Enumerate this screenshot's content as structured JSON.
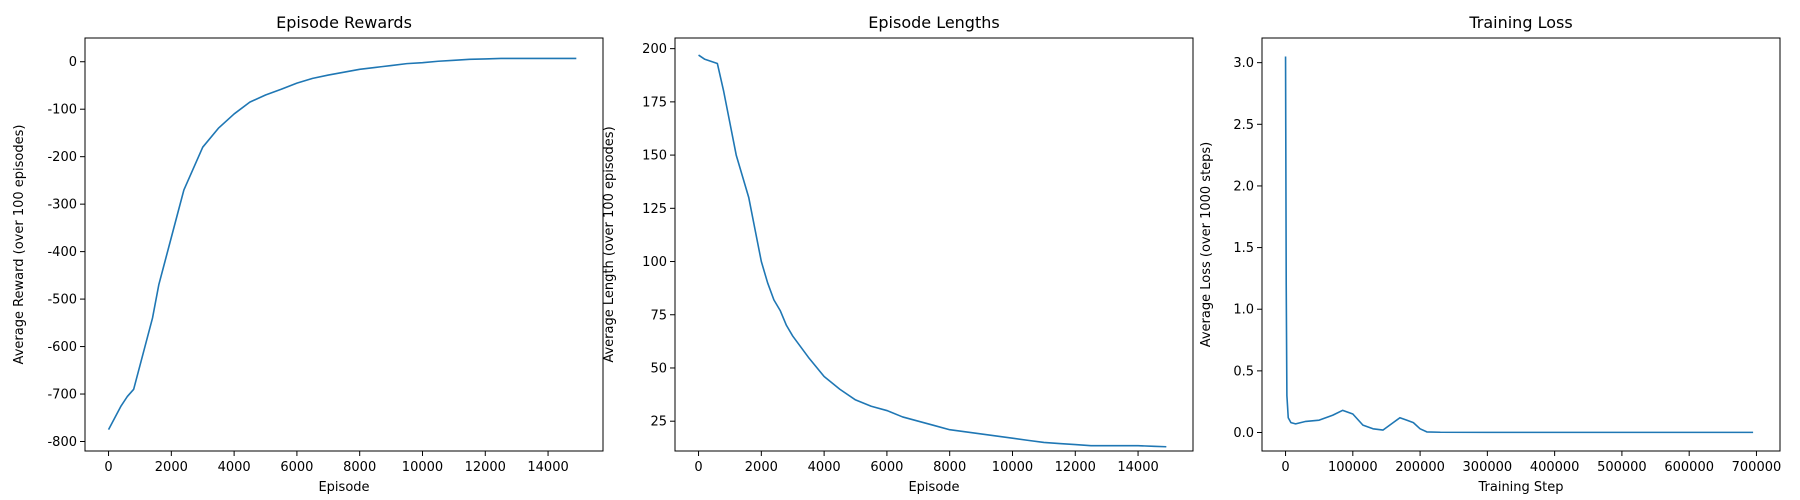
{
  "chart_data": [
    {
      "type": "line",
      "title": "Episode Rewards",
      "xlabel": "Episode",
      "ylabel": "Average Reward (over 100 episodes)",
      "xlim": [
        -750,
        15750
      ],
      "ylim": [
        -820,
        50
      ],
      "xticks": [
        0,
        2000,
        4000,
        6000,
        8000,
        10000,
        12000,
        14000
      ],
      "yticks": [
        -800,
        -700,
        -600,
        -500,
        -400,
        -300,
        -200,
        -100,
        0
      ],
      "grid": false,
      "legend": "none",
      "series": [
        {
          "color": "#1f77b4",
          "x": [
            0,
            200,
            400,
            600,
            800,
            1000,
            1200,
            1400,
            1600,
            1800,
            2000,
            2200,
            2400,
            2600,
            2800,
            3000,
            3500,
            4000,
            4500,
            5000,
            5500,
            6000,
            6500,
            7000,
            7500,
            8000,
            8500,
            9000,
            9500,
            10000,
            10500,
            11000,
            11500,
            12000,
            12500,
            13000,
            13500,
            14000,
            14500,
            14900
          ],
          "y": [
            -775,
            -750,
            -725,
            -705,
            -690,
            -640,
            -590,
            -540,
            -470,
            -420,
            -370,
            -320,
            -270,
            -240,
            -210,
            -180,
            -140,
            -110,
            -85,
            -70,
            -58,
            -45,
            -35,
            -28,
            -22,
            -16,
            -12,
            -8,
            -4,
            -2,
            1,
            3,
            5,
            6,
            7,
            7,
            7,
            7,
            7,
            7
          ]
        }
      ]
    },
    {
      "type": "line",
      "title": "Episode Lengths",
      "xlabel": "Episode",
      "ylabel": "Average Length (over 100 episodes)",
      "xlim": [
        -750,
        15750
      ],
      "ylim": [
        11,
        205
      ],
      "xticks": [
        0,
        2000,
        4000,
        6000,
        8000,
        10000,
        12000,
        14000
      ],
      "yticks": [
        25,
        50,
        75,
        100,
        125,
        150,
        175,
        200
      ],
      "grid": false,
      "legend": "none",
      "series": [
        {
          "color": "#1f77b4",
          "x": [
            0,
            200,
            400,
            600,
            800,
            1000,
            1200,
            1400,
            1600,
            1800,
            2000,
            2200,
            2400,
            2600,
            2800,
            3000,
            3500,
            4000,
            4500,
            5000,
            5500,
            6000,
            6500,
            7000,
            7500,
            8000,
            8500,
            9000,
            9500,
            10000,
            10500,
            11000,
            11500,
            12000,
            12500,
            13000,
            13500,
            14000,
            14500,
            14900
          ],
          "y": [
            197,
            195,
            194,
            193,
            180,
            165,
            150,
            140,
            130,
            115,
            100,
            90,
            82,
            77,
            70,
            65,
            55,
            46,
            40,
            35,
            32,
            30,
            27,
            25,
            23,
            21,
            20,
            19,
            18,
            17,
            16,
            15,
            14.5,
            14,
            13.5,
            13.5,
            13.5,
            13.5,
            13.2,
            13
          ]
        }
      ]
    },
    {
      "type": "line",
      "title": "Training Loss",
      "xlabel": "Training Step",
      "ylabel": "Average Loss (over 1000 steps)",
      "xlim": [
        -35000,
        735000
      ],
      "ylim": [
        -0.15,
        3.2
      ],
      "xticks": [
        0,
        100000,
        200000,
        300000,
        400000,
        500000,
        600000,
        700000
      ],
      "yticks": [
        0.0,
        0.5,
        1.0,
        1.5,
        2.0,
        2.5,
        3.0
      ],
      "grid": false,
      "legend": "none",
      "series": [
        {
          "color": "#1f77b4",
          "x": [
            0,
            1000,
            2000,
            4000,
            8000,
            15000,
            30000,
            50000,
            70000,
            85000,
            100000,
            115000,
            130000,
            145000,
            160000,
            170000,
            180000,
            190000,
            200000,
            210000,
            230000,
            300000,
            400000,
            500000,
            600000,
            695000
          ],
          "y": [
            3.05,
            1.2,
            0.3,
            0.12,
            0.08,
            0.07,
            0.09,
            0.1,
            0.14,
            0.18,
            0.15,
            0.06,
            0.03,
            0.02,
            0.08,
            0.12,
            0.1,
            0.08,
            0.03,
            0.005,
            0.002,
            0.001,
            0.001,
            0.001,
            0.001,
            0.001
          ]
        }
      ]
    }
  ]
}
